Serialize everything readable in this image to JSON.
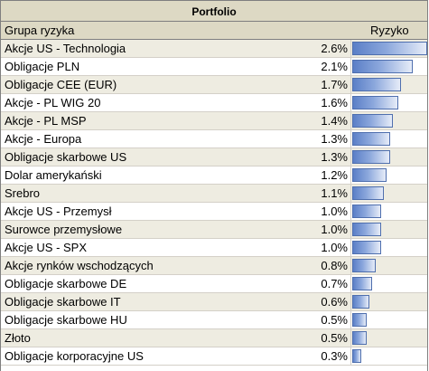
{
  "chart_data": {
    "type": "bar",
    "title": "Portfolio",
    "column_headers": {
      "name": "Grupa ryzyka",
      "value": "Ryzyko"
    },
    "categories": [
      "Akcje US - Technologia",
      "Obligacje PLN",
      "Obligacje CEE (EUR)",
      "Akcje - PL WIG 20",
      "Akcje - PL MSP",
      "Akcje - Europa",
      "Obligacje skarbowe US",
      "Dolar amerykański",
      "Srebro",
      "Akcje US - Przemysł",
      "Surowce przemysłowe",
      "Akcje US - SPX",
      "Akcje rynków wschodzących",
      "Obligacje skarbowe DE",
      "Obligacje skarbowe IT",
      "Obligacje skarbowe HU",
      "Złoto",
      "Obligacje korporacyjne US"
    ],
    "values": [
      2.6,
      2.1,
      1.7,
      1.6,
      1.4,
      1.3,
      1.3,
      1.2,
      1.1,
      1.0,
      1.0,
      1.0,
      0.8,
      0.7,
      0.6,
      0.5,
      0.5,
      0.3
    ],
    "labels": [
      "2.6%",
      "2.1%",
      "1.7%",
      "1.6%",
      "1.4%",
      "1.3%",
      "1.3%",
      "1.2%",
      "1.1%",
      "1.0%",
      "1.0%",
      "1.0%",
      "0.8%",
      "0.7%",
      "0.6%",
      "0.5%",
      "0.5%",
      "0.3%"
    ],
    "unit": "%",
    "xlim": [
      0,
      2.6
    ],
    "orientation": "horizontal",
    "bar_colors": {
      "start": "#5b7fc7",
      "mid": "#8ba7dc",
      "end": "#e6ecf8",
      "border": "#4f6fae"
    },
    "colors": {
      "header_bg": "#ddd9c4",
      "stripe_bg": "#eeece1"
    }
  }
}
